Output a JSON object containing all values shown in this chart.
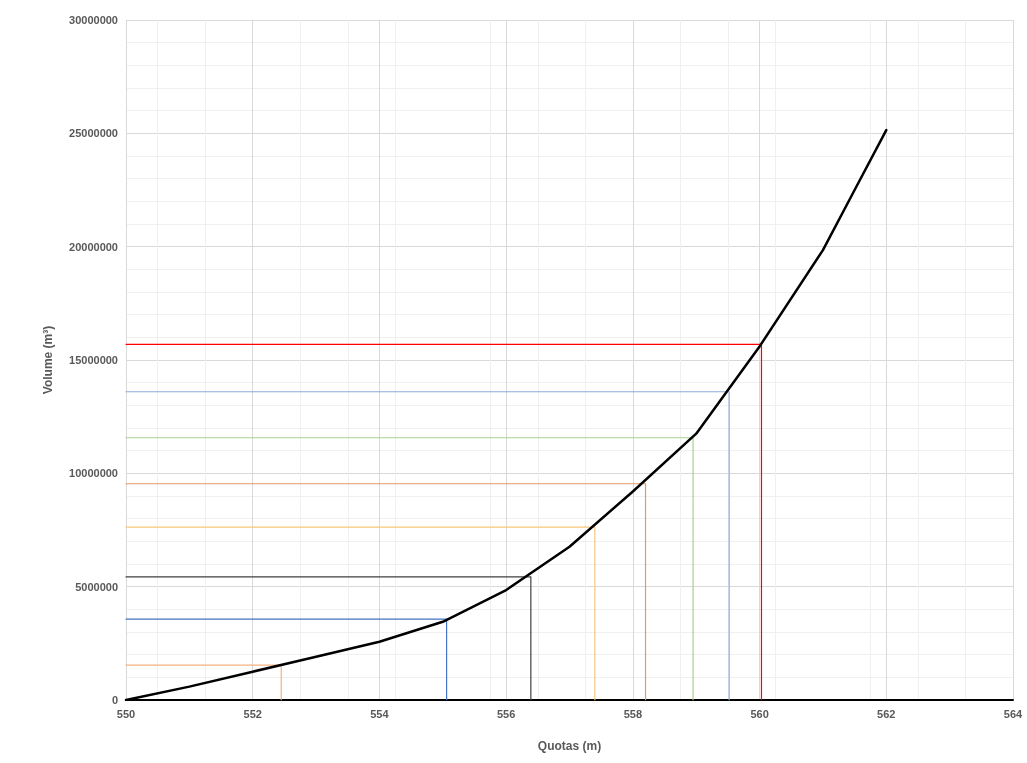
{
  "chart_data": {
    "type": "line",
    "xlabel": "Quotas (m)",
    "ylabel": "Volume (m³)",
    "xlim": [
      550,
      564
    ],
    "xticks": [
      550,
      552,
      554,
      556,
      558,
      560,
      562,
      564
    ],
    "ylim": [
      0,
      30000000
    ],
    "yticks": [
      0,
      5000000,
      10000000,
      15000000,
      20000000,
      25000000,
      30000000
    ],
    "grid": true,
    "marker": "none",
    "line_style": "solid",
    "series": [
      {
        "color": "#000000",
        "x": [
          550,
          551,
          552,
          553,
          554,
          555,
          556,
          557,
          558,
          559,
          560,
          561,
          561.5,
          562
        ],
        "values": [
          0,
          590000,
          1250000,
          1910000,
          2570000,
          3450000,
          4850000,
          6760000,
          9200000,
          11750000,
          15600000,
          19850000,
          22500000,
          25140000
        ]
      },
      {
        "color": "#f4b183",
        "x": [
          550,
          552.45,
          552.45
        ],
        "values": [
          1540000,
          1540000,
          0
        ]
      },
      {
        "color": "#4472c4",
        "x": [
          550,
          555.06,
          555.06
        ],
        "values": [
          3570000,
          3570000,
          0
        ]
      },
      {
        "color": "#404040",
        "x": [
          550,
          556.39,
          556.39
        ],
        "values": [
          5430000,
          5430000,
          0
        ]
      },
      {
        "color": "#f9c77a",
        "x": [
          550,
          557.4,
          557.4
        ],
        "values": [
          7630000,
          7630000,
          0
        ]
      },
      {
        "color": "#e09a6a",
        "x": [
          550,
          558.2,
          558.2
        ],
        "values": [
          9540000,
          9540000,
          0
        ]
      },
      {
        "color": "#a9d18e",
        "x": [
          550,
          558.95,
          558.95
        ],
        "values": [
          11570000,
          11570000,
          0
        ]
      },
      {
        "color": "#8faadc",
        "x": [
          550,
          559.52,
          559.52
        ],
        "values": [
          13600000,
          13600000,
          0
        ]
      },
      {
        "color": "#ff0000",
        "x": [
          550,
          560.03,
          560.03
        ],
        "values": [
          15690000,
          15690000,
          0
        ]
      }
    ]
  }
}
